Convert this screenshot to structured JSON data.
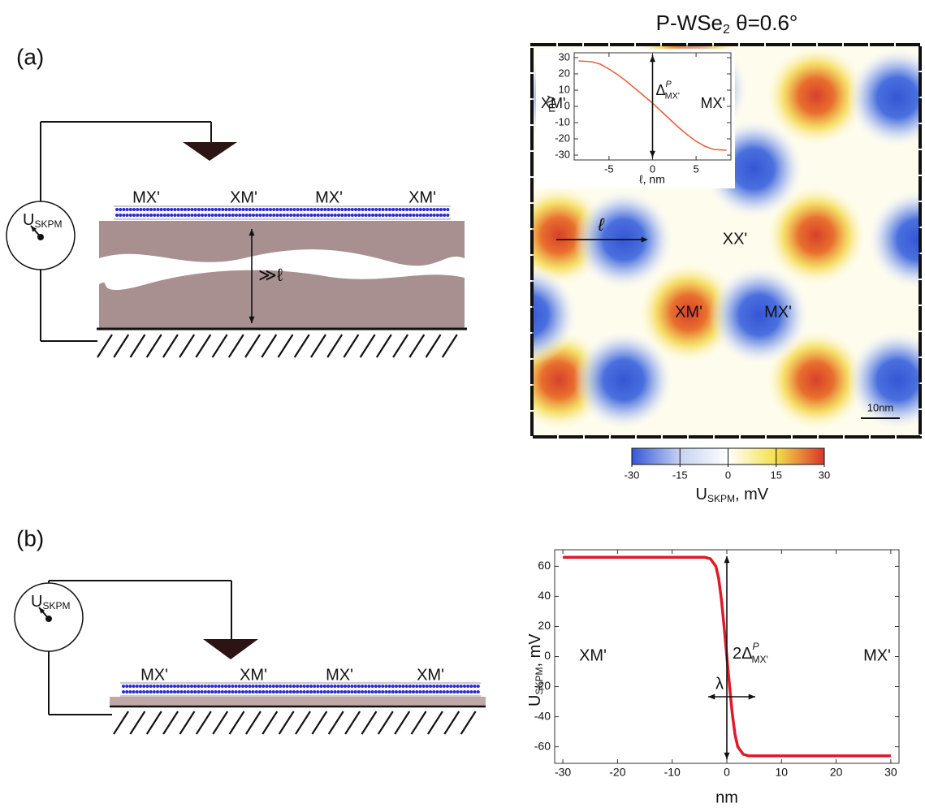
{
  "panel_labels": [
    "(a)",
    "(b)"
  ],
  "diagram_a": {
    "meter": {
      "symbol": "U",
      "subscript": "SKPM"
    },
    "regions": [
      "MX'",
      "XM'",
      "MX'",
      "XM'"
    ],
    "gap_label": "≫ℓ"
  },
  "diagram_b": {
    "meter": {
      "symbol": "U",
      "subscript": "SKPM"
    },
    "regions": [
      "MX'",
      "XM'",
      "MX'",
      "XM'"
    ]
  },
  "map": {
    "title": {
      "main": "P-WSe",
      "subscript": "2",
      "rest": " θ=0.6°"
    },
    "labels": {
      "xx": "XX'",
      "xm": "XM'",
      "mx": "MX'"
    },
    "arrow_label": "ℓ",
    "scale_bar": "10nm"
  },
  "chart_data": [
    {
      "type": "line",
      "x": [
        -8.5,
        -7,
        -6,
        -5,
        -4,
        -3,
        -2,
        -1,
        0,
        1,
        2,
        3,
        4,
        5,
        6,
        7,
        8.5
      ],
      "values": [
        28,
        27.5,
        26,
        23,
        19.5,
        15.5,
        11,
        6.5,
        2,
        -3,
        -8,
        -13,
        -17.5,
        -21.5,
        -24.5,
        -26.5,
        -27
      ],
      "color": "#e8643c",
      "xlim": [
        -9,
        9
      ],
      "ylim": [
        -33,
        33
      ],
      "xticks": [
        -5,
        0,
        5
      ],
      "yticks": [
        -30,
        -20,
        -10,
        0,
        10,
        20,
        30
      ],
      "x_label": "ℓ, nm",
      "y_label": "mV",
      "annotations": {
        "left": "XM'",
        "right": "MX'",
        "delta": {
          "symbol": "Δ",
          "superscript": "P",
          "subscript": "MX'"
        }
      }
    },
    {
      "type": "colorbar",
      "xlim": [
        -30,
        30
      ],
      "xticks": [
        -30,
        -15,
        0,
        15,
        30
      ],
      "colors": [
        "#3556d6",
        "#c6d2f2",
        "#ffffff",
        "#f3e04a",
        "#d8352a"
      ],
      "x_label": {
        "symbol": "U",
        "subscript": "SKPM",
        "unit": ", mV"
      }
    },
    {
      "type": "line",
      "x": [
        -30,
        -10,
        -4,
        -3,
        -2,
        -1.5,
        -1,
        -0.5,
        0,
        0.5,
        1,
        1.5,
        2,
        3,
        4,
        10,
        30
      ],
      "values": [
        66,
        66,
        66,
        65,
        60,
        52,
        38,
        20,
        0,
        -20,
        -38,
        -52,
        -60,
        -65,
        -66,
        -66,
        -66
      ],
      "color": "#e0192a",
      "xlim": [
        -31.5,
        31.5
      ],
      "ylim": [
        -71,
        71
      ],
      "xticks": [
        -30,
        -20,
        -10,
        0,
        10,
        20,
        30
      ],
      "yticks": [
        -60,
        -40,
        -20,
        0,
        20,
        40,
        60
      ],
      "x_label": "nm",
      "y_label": {
        "symbol": "U",
        "subscript": "SKPM",
        "unit": ", mV"
      },
      "annotations": {
        "left": "XM'",
        "right": "MX'",
        "delta": {
          "symbol": "2Δ",
          "superscript": "P",
          "subscript": "MX'"
        },
        "width": "λ"
      }
    }
  ]
}
